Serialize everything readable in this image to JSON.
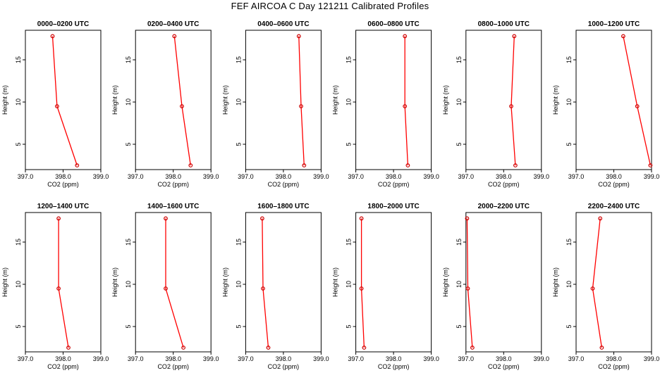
{
  "title": "FEF AIRCOA C  Day 121211  Calibrated Profiles",
  "colors": {
    "line": "#ff0000",
    "marker": "#cc0000",
    "axis": "#000000",
    "background": "#ffffff"
  },
  "chart_data": [
    {
      "type": "line",
      "title": "0000–0200 UTC",
      "xlabel": "CO2 (ppm)",
      "ylabel": "Height (m)",
      "xlim": [
        397.0,
        399.0
      ],
      "ylim": [
        2,
        18.5
      ],
      "xticks": [
        "397.0",
        "398.0",
        "399.0"
      ],
      "yticks": [
        "5",
        "10",
        "15"
      ],
      "series": [
        {
          "x": [
            397.72,
            397.84,
            398.37
          ],
          "y": [
            17.8,
            9.5,
            2.5
          ]
        }
      ]
    },
    {
      "type": "line",
      "title": "0200–0400 UTC",
      "xlabel": "CO2 (ppm)",
      "ylabel": "Height (m)",
      "xlim": [
        397.0,
        399.0
      ],
      "ylim": [
        2,
        18.5
      ],
      "xticks": [
        "397.0",
        "398.0",
        "399.0"
      ],
      "yticks": [
        "5",
        "10",
        "15"
      ],
      "series": [
        {
          "x": [
            398.03,
            398.23,
            398.46
          ],
          "y": [
            17.8,
            9.5,
            2.5
          ]
        }
      ]
    },
    {
      "type": "line",
      "title": "0400–0600 UTC",
      "xlabel": "CO2 (ppm)",
      "ylabel": "Height (m)",
      "xlim": [
        397.0,
        399.0
      ],
      "ylim": [
        2,
        18.5
      ],
      "xticks": [
        "397.0",
        "398.0",
        "399.0"
      ],
      "yticks": [
        "5",
        "10",
        "15"
      ],
      "series": [
        {
          "x": [
            398.41,
            398.47,
            398.55
          ],
          "y": [
            17.8,
            9.5,
            2.5
          ]
        }
      ]
    },
    {
      "type": "line",
      "title": "0600–0800 UTC",
      "xlabel": "CO2 (ppm)",
      "ylabel": "Height (m)",
      "xlim": [
        397.0,
        399.0
      ],
      "ylim": [
        2,
        18.5
      ],
      "xticks": [
        "397.0",
        "398.0",
        "399.0"
      ],
      "yticks": [
        "5",
        "10",
        "15"
      ],
      "series": [
        {
          "x": [
            398.3,
            398.3,
            398.38
          ],
          "y": [
            17.8,
            9.5,
            2.5
          ]
        }
      ]
    },
    {
      "type": "line",
      "title": "0800–1000 UTC",
      "xlabel": "CO2 (ppm)",
      "ylabel": "Height (m)",
      "xlim": [
        397.0,
        399.0
      ],
      "ylim": [
        2,
        18.5
      ],
      "xticks": [
        "397.0",
        "398.0",
        "399.0"
      ],
      "yticks": [
        "5",
        "10",
        "15"
      ],
      "series": [
        {
          "x": [
            398.28,
            398.2,
            398.31
          ],
          "y": [
            17.8,
            9.5,
            2.5
          ]
        }
      ]
    },
    {
      "type": "line",
      "title": "1000–1200 UTC",
      "xlabel": "CO2 (ppm)",
      "ylabel": "Height (m)",
      "xlim": [
        397.0,
        399.0
      ],
      "ylim": [
        2,
        18.5
      ],
      "xticks": [
        "397.0",
        "398.0",
        "399.0"
      ],
      "yticks": [
        "5",
        "10",
        "15"
      ],
      "series": [
        {
          "x": [
            398.25,
            398.62,
            398.97
          ],
          "y": [
            17.8,
            9.5,
            2.5
          ]
        }
      ]
    },
    {
      "type": "line",
      "title": "1200–1400 UTC",
      "xlabel": "CO2 (ppm)",
      "ylabel": "Height (m)",
      "xlim": [
        397.0,
        399.0
      ],
      "ylim": [
        2,
        18.5
      ],
      "xticks": [
        "397.0",
        "398.0",
        "399.0"
      ],
      "yticks": [
        "5",
        "10",
        "15"
      ],
      "series": [
        {
          "x": [
            397.88,
            397.88,
            398.14
          ],
          "y": [
            17.8,
            9.5,
            2.5
          ]
        }
      ]
    },
    {
      "type": "line",
      "title": "1400–1600 UTC",
      "xlabel": "CO2 (ppm)",
      "ylabel": "Height (m)",
      "xlim": [
        397.0,
        399.0
      ],
      "ylim": [
        2,
        18.5
      ],
      "xticks": [
        "397.0",
        "398.0",
        "399.0"
      ],
      "yticks": [
        "5",
        "10",
        "15"
      ],
      "series": [
        {
          "x": [
            397.8,
            397.8,
            398.27
          ],
          "y": [
            17.8,
            9.5,
            2.5
          ]
        }
      ]
    },
    {
      "type": "line",
      "title": "1600–1800 UTC",
      "xlabel": "CO2 (ppm)",
      "ylabel": "Height (m)",
      "xlim": [
        397.0,
        399.0
      ],
      "ylim": [
        2,
        18.5
      ],
      "xticks": [
        "397.0",
        "398.0",
        "399.0"
      ],
      "yticks": [
        "5",
        "10",
        "15"
      ],
      "series": [
        {
          "x": [
            397.44,
            397.46,
            397.6
          ],
          "y": [
            17.8,
            9.5,
            2.5
          ]
        }
      ]
    },
    {
      "type": "line",
      "title": "1800–2000 UTC",
      "xlabel": "CO2 (ppm)",
      "ylabel": "Height (m)",
      "xlim": [
        397.0,
        399.0
      ],
      "ylim": [
        2,
        18.5
      ],
      "xticks": [
        "397.0",
        "398.0",
        "399.0"
      ],
      "yticks": [
        "5",
        "10",
        "15"
      ],
      "series": [
        {
          "x": [
            397.15,
            397.15,
            397.22
          ],
          "y": [
            17.8,
            9.5,
            2.5
          ]
        }
      ]
    },
    {
      "type": "line",
      "title": "2000–2200 UTC",
      "xlabel": "CO2 (ppm)",
      "ylabel": "Height (m)",
      "xlim": [
        397.0,
        399.0
      ],
      "ylim": [
        2,
        18.5
      ],
      "xticks": [
        "397.0",
        "398.0",
        "399.0"
      ],
      "yticks": [
        "5",
        "10",
        "15"
      ],
      "series": [
        {
          "x": [
            397.03,
            397.05,
            397.17
          ],
          "y": [
            17.8,
            9.5,
            2.5
          ]
        }
      ]
    },
    {
      "type": "line",
      "title": "2200–2400 UTC",
      "xlabel": "CO2 (ppm)",
      "ylabel": "Height (m)",
      "xlim": [
        397.0,
        399.0
      ],
      "ylim": [
        2,
        18.5
      ],
      "xticks": [
        "397.0",
        "398.0",
        "399.0"
      ],
      "yticks": [
        "5",
        "10",
        "15"
      ],
      "series": [
        {
          "x": [
            397.64,
            397.44,
            397.68
          ],
          "y": [
            17.8,
            9.5,
            2.5
          ]
        }
      ]
    }
  ]
}
